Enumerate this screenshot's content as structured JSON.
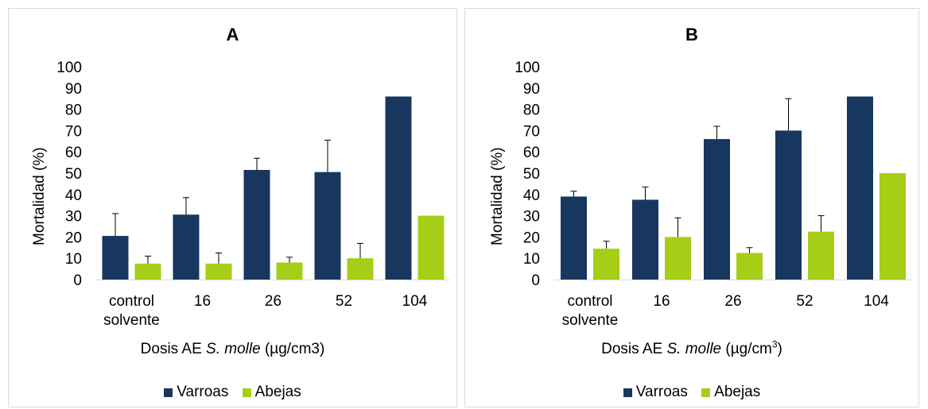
{
  "colors": {
    "varroas": "#17375e",
    "abejas": "#a6ce17"
  },
  "chart_data": [
    {
      "type": "bar",
      "title": "A",
      "ylabel": "Mortalidad (%)",
      "xlabel_parts": {
        "pre": "Dosis AE ",
        "italic": "S. molle",
        "post": " (µg/cm3)",
        "sup": ""
      },
      "categories": [
        [
          "control",
          "solvente"
        ],
        [
          "16"
        ],
        [
          "26"
        ],
        [
          "52"
        ],
        [
          "104"
        ]
      ],
      "ylim": [
        0,
        100
      ],
      "yticks": [
        0,
        10,
        20,
        30,
        40,
        50,
        60,
        70,
        80,
        90,
        100
      ],
      "grid": false,
      "legend_position": "bottom",
      "series": [
        {
          "name": "Varroas",
          "color": "#17375e",
          "values": [
            20.5,
            30.5,
            51.5,
            50.5,
            86
          ],
          "errors": [
            10.5,
            8,
            5.5,
            15,
            0
          ]
        },
        {
          "name": "Abejas",
          "color": "#a6ce17",
          "values": [
            7.5,
            7.5,
            8,
            10,
            30
          ],
          "errors": [
            3.5,
            5,
            2.5,
            7,
            0
          ]
        }
      ]
    },
    {
      "type": "bar",
      "title": "B",
      "ylabel": "Mortalidad (%)",
      "xlabel_parts": {
        "pre": "Dosis AE ",
        "italic": "S. molle",
        "post": " (µg/cm",
        "sup": "3",
        "post2": ")"
      },
      "categories": [
        [
          "control",
          "solvente"
        ],
        [
          "16"
        ],
        [
          "26"
        ],
        [
          "52"
        ],
        [
          "104"
        ]
      ],
      "ylim": [
        0,
        100
      ],
      "yticks": [
        0,
        10,
        20,
        30,
        40,
        50,
        60,
        70,
        80,
        90,
        100
      ],
      "grid": false,
      "legend_position": "bottom",
      "series": [
        {
          "name": "Varroas",
          "color": "#17375e",
          "values": [
            39,
            37.5,
            66,
            70,
            86
          ],
          "errors": [
            2.5,
            6,
            6,
            15,
            0
          ]
        },
        {
          "name": "Abejas",
          "color": "#a6ce17",
          "values": [
            14.5,
            20,
            12.5,
            22.5,
            50
          ],
          "errors": [
            3.5,
            9,
            2.5,
            7.5,
            0
          ]
        }
      ]
    }
  ]
}
